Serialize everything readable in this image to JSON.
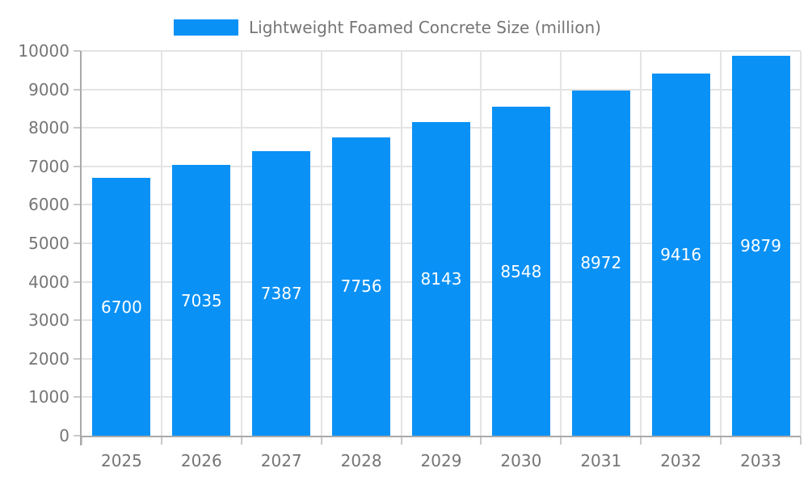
{
  "legend": {
    "label": "Lightweight Foamed Concrete Size (million)"
  },
  "colors": {
    "bar": "#0991f6",
    "grid": "#e4e4e4",
    "axis": "#a9a9a9",
    "tick": "#c9c9c9",
    "label_text": "#757575",
    "value_text": "#ffffff",
    "background": "#ffffff"
  },
  "chart_data": {
    "type": "bar",
    "title": "Lightweight Foamed Concrete Size (million)",
    "legend": [
      "Lightweight Foamed Concrete Size (million)"
    ],
    "legend_position": "top",
    "categories": [
      "2025",
      "2026",
      "2027",
      "2028",
      "2029",
      "2030",
      "2031",
      "2032",
      "2033"
    ],
    "values": [
      6700,
      7035,
      7387,
      7756,
      8143,
      8548,
      8972,
      9416,
      9879
    ],
    "xlabel": "",
    "ylabel": "",
    "ylim": [
      0,
      10000
    ],
    "ytick_step": 1000,
    "yticks": [
      0,
      1000,
      2000,
      3000,
      4000,
      5000,
      6000,
      7000,
      8000,
      9000,
      10000
    ],
    "grid": true,
    "value_label_position": "inside-center"
  }
}
